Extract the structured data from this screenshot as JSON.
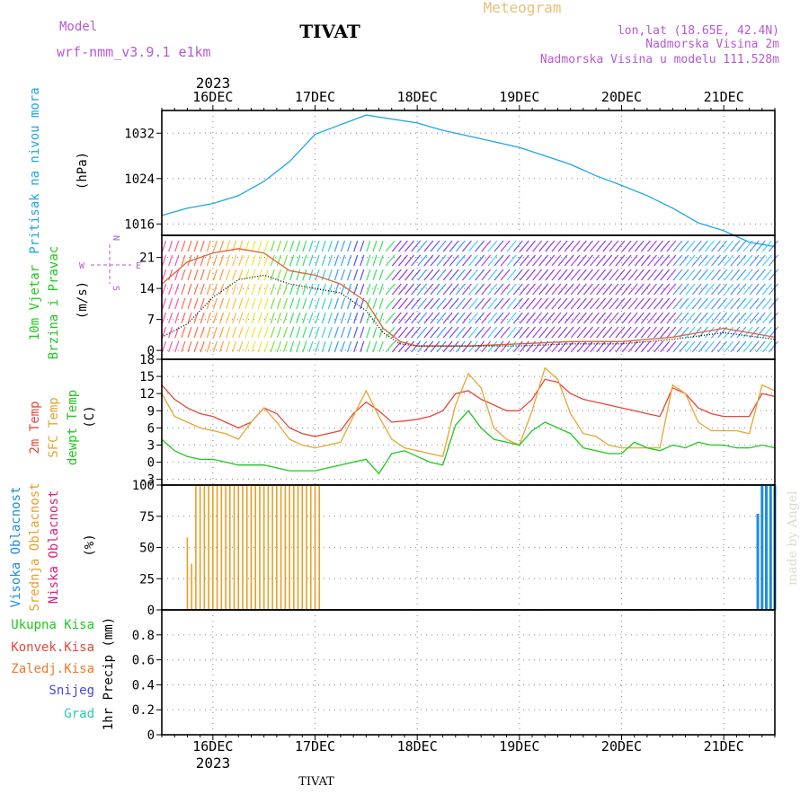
{
  "header": {
    "model_label": "Model",
    "model_name": "wrf-nmm_v3.9.1  e1km",
    "station": "TIVAT",
    "meteogram": "Meteogram",
    "lonlat": "lon,lat (18.65E, 42.4N)",
    "elevation": "Nadmorska Visina 2m",
    "model_elevation": "Nadmorska Visina u modelu 111.528m",
    "top_year": "2023",
    "bottom_year": "2023",
    "footer_station": "TIVAT",
    "credit": "made by Angel"
  },
  "colors": {
    "pressure": "#1ea5e6",
    "temp2m": "#e6463c",
    "sfc_temp": "#e6a532",
    "dewpoint": "#1ec81e",
    "wind_line": "#dc6432",
    "wind_black": "#000000",
    "high_cloud": "#1e8cdc",
    "mid_cloud": "#e6a028",
    "low_cloud": "#dc1e82",
    "ukupna": "#1ec81e",
    "konvek": "#e6463c",
    "zaledj": "#f07828",
    "snijeg": "#4646dc",
    "grad": "#28c8b4",
    "compass": "#b45ad2",
    "credit": "#dcdccc"
  },
  "panels": {
    "pressure": {
      "label1": "Pritisak na nivou mora",
      "unit": "(hPa)"
    },
    "wind": {
      "label1": "10m Vjetar",
      "label2": "Brzina i Pravac",
      "unit": "(m/s)",
      "compass_w": "W",
      "compass_e": "E",
      "compass_n": "N",
      "compass_s": "S"
    },
    "temp": {
      "label1": "2m Temp",
      "label2": "SFC Temp",
      "label3": "dewpt Temp",
      "unit": "(C)"
    },
    "cloud": {
      "label1": "Visoka Oblacnost",
      "label2": "Srednja Oblacnost",
      "label3": "Niska Oblacnost",
      "unit": "(%)"
    },
    "precip": {
      "label1": "Ukupna Kisa",
      "label2": "Konvek.Kisa",
      "label3": "Zaledj.Kisa",
      "label4": "Snijeg",
      "label5": "Grad",
      "unit": "1hr Precip (mm)"
    }
  },
  "chart_data": [
    {
      "type": "line",
      "panel": "pressure",
      "x_unit": "hours since 2023-12-15 12:00",
      "xlim": [
        0,
        144
      ],
      "x_tick_labels": [
        "16DEC",
        "17DEC",
        "18DEC",
        "19DEC",
        "20DEC",
        "21DEC"
      ],
      "ylabel": "(hPa)",
      "ylim": [
        1014,
        1036
      ],
      "y_ticks": [
        1016,
        1024,
        1032
      ],
      "series": [
        {
          "x": [
            0,
            6,
            12,
            18,
            24,
            30,
            36,
            42,
            48,
            54,
            60,
            66,
            72,
            78,
            84,
            90,
            96,
            102,
            108,
            114,
            120,
            126,
            132,
            138,
            144
          ],
          "values": [
            1017.5,
            1018.8,
            1019.6,
            1021.0,
            1023.5,
            1027.0,
            1031.8,
            1033.5,
            1035.2,
            1034.5,
            1033.8,
            1032.5,
            1031.5,
            1030.5,
            1029.5,
            1028.0,
            1026.5,
            1024.5,
            1022.8,
            1021.0,
            1018.8,
            1016.2,
            1014.8,
            1012.8,
            1012.0
          ]
        }
      ]
    },
    {
      "type": "line",
      "panel": "wind",
      "x_unit": "hours since 2023-12-15 12:00",
      "xlim": [
        0,
        144
      ],
      "ylabel": "(m/s)",
      "ylim": [
        -2,
        26
      ],
      "y_ticks": [
        0,
        7,
        14,
        21
      ],
      "series": [
        {
          "x": [
            0,
            6,
            12,
            18,
            24,
            30,
            36,
            42,
            48,
            52,
            56,
            60,
            72,
            84,
            96,
            108,
            120,
            132,
            144
          ],
          "values": [
            15.0,
            20.0,
            22.0,
            23.0,
            22.0,
            18.0,
            17.0,
            15.0,
            11.0,
            5.0,
            2.0,
            1.0,
            1.0,
            1.5,
            2.0,
            2.0,
            3.0,
            5.0,
            3.0
          ]
        },
        {
          "x": [
            0,
            6,
            12,
            18,
            24,
            30,
            36,
            42,
            48,
            52,
            56,
            60,
            72,
            84,
            96,
            108,
            120,
            132,
            144
          ],
          "values": [
            3.0,
            6.0,
            12.0,
            16.0,
            17.0,
            15.0,
            14.0,
            13.0,
            9.0,
            4.0,
            1.5,
            1.0,
            1.0,
            1.0,
            1.5,
            1.5,
            2.5,
            4.0,
            2.5
          ]
        }
      ]
    },
    {
      "type": "line",
      "panel": "temp",
      "x_unit": "hours since 2023-12-15 12:00",
      "xlim": [
        0,
        144
      ],
      "ylabel": "(C)",
      "ylim": [
        -4,
        18
      ],
      "y_ticks": [
        -3,
        0,
        3,
        6,
        9,
        12,
        15,
        18
      ],
      "series": [
        {
          "x": [
            0,
            3,
            6,
            9,
            12,
            15,
            18,
            21,
            24,
            27,
            30,
            33,
            36,
            39,
            42,
            45,
            48,
            51,
            54,
            57,
            60,
            63,
            66,
            69,
            72,
            75,
            78,
            81,
            84,
            87,
            90,
            93,
            96,
            99,
            102,
            105,
            108,
            111,
            114,
            117,
            120,
            123,
            126,
            129,
            132,
            135,
            138,
            141,
            144
          ],
          "values": [
            13.5,
            11.0,
            9.5,
            8.5,
            8.0,
            7.0,
            6.0,
            7.0,
            9.5,
            8.5,
            6.0,
            5.0,
            4.5,
            5.0,
            5.5,
            8.5,
            10.5,
            9.0,
            7.0,
            7.2,
            7.5,
            8.0,
            9.0,
            12.0,
            12.5,
            11.0,
            10.0,
            9.0,
            9.0,
            11.0,
            14.5,
            14.0,
            12.0,
            11.0,
            10.5,
            10.0,
            9.5,
            9.0,
            8.5,
            8.0,
            13.0,
            12.0,
            9.5,
            8.5,
            8.0,
            8.0,
            8.0,
            12.0,
            11.5
          ]
        },
        {
          "x": [
            0,
            3,
            6,
            9,
            12,
            15,
            18,
            21,
            24,
            27,
            30,
            33,
            36,
            39,
            42,
            45,
            48,
            51,
            54,
            57,
            60,
            63,
            66,
            69,
            72,
            75,
            78,
            81,
            84,
            87,
            90,
            93,
            96,
            99,
            102,
            105,
            108,
            111,
            114,
            117,
            120,
            123,
            126,
            129,
            132,
            135,
            138,
            141,
            144
          ],
          "values": [
            12.0,
            8.0,
            7.0,
            6.0,
            5.5,
            5.0,
            4.0,
            7.0,
            9.5,
            7.0,
            4.0,
            3.0,
            2.5,
            3.0,
            3.5,
            8.0,
            12.5,
            8.0,
            4.0,
            2.5,
            2.0,
            1.5,
            1.0,
            10.0,
            15.5,
            13.0,
            6.0,
            4.0,
            3.0,
            9.0,
            16.5,
            14.5,
            8.5,
            5.0,
            4.5,
            3.0,
            2.5,
            2.5,
            2.5,
            2.5,
            13.5,
            12.0,
            7.0,
            5.5,
            5.5,
            5.5,
            5.0,
            13.5,
            12.5
          ]
        },
        {
          "x": [
            0,
            3,
            6,
            9,
            12,
            15,
            18,
            21,
            24,
            27,
            30,
            33,
            36,
            39,
            42,
            45,
            48,
            51,
            54,
            57,
            60,
            63,
            66,
            69,
            72,
            75,
            78,
            81,
            84,
            87,
            90,
            93,
            96,
            99,
            102,
            105,
            108,
            111,
            114,
            117,
            120,
            123,
            126,
            129,
            132,
            135,
            138,
            141,
            144
          ],
          "values": [
            4.0,
            2.0,
            1.0,
            0.5,
            0.5,
            0.0,
            -0.5,
            -0.5,
            -0.5,
            -1.0,
            -1.5,
            -1.5,
            -1.5,
            -1.0,
            -0.5,
            0.0,
            0.5,
            -2.0,
            1.5,
            2.0,
            1.0,
            0.0,
            -0.5,
            6.5,
            9.0,
            6.0,
            4.0,
            3.5,
            3.0,
            5.5,
            7.0,
            6.0,
            5.0,
            2.5,
            2.0,
            1.5,
            1.5,
            3.5,
            2.5,
            2.0,
            3.0,
            2.5,
            3.5,
            3.0,
            3.0,
            2.5,
            2.5,
            3.0,
            2.5
          ]
        }
      ]
    },
    {
      "type": "bar",
      "panel": "cloud",
      "x_unit": "hours since 2023-12-15 12:00",
      "xlim": [
        0,
        144
      ],
      "ylabel": "(%)",
      "ylim": [
        0,
        100
      ],
      "y_ticks": [
        0,
        25,
        50,
        75,
        100
      ],
      "series": [
        {
          "x": [
            6,
            7,
            8,
            9,
            10,
            11,
            12,
            13,
            14,
            15,
            16,
            17,
            18,
            19,
            20,
            21,
            22,
            23,
            24,
            25,
            26,
            27,
            28,
            29,
            30,
            31,
            32,
            33,
            34,
            35,
            36,
            37
          ],
          "values": [
            58,
            37,
            100,
            100,
            100,
            100,
            100,
            100,
            100,
            100,
            100,
            100,
            100,
            100,
            100,
            100,
            100,
            100,
            100,
            100,
            100,
            100,
            100,
            100,
            100,
            100,
            100,
            100,
            100,
            100,
            100,
            100
          ]
        },
        {
          "x": [
            140,
            141,
            142,
            143,
            144
          ],
          "values": [
            77,
            100,
            100,
            100,
            100
          ]
        }
      ]
    },
    {
      "type": "bar",
      "panel": "precip",
      "x_unit": "hours since 2023-12-15 12:00",
      "xlim": [
        0,
        144
      ],
      "ylabel": "1hr Precip (mm)",
      "ylim": [
        0,
        1
      ],
      "y_ticks": [
        0,
        0.2,
        0.4,
        0.6,
        0.8
      ],
      "series": []
    }
  ]
}
